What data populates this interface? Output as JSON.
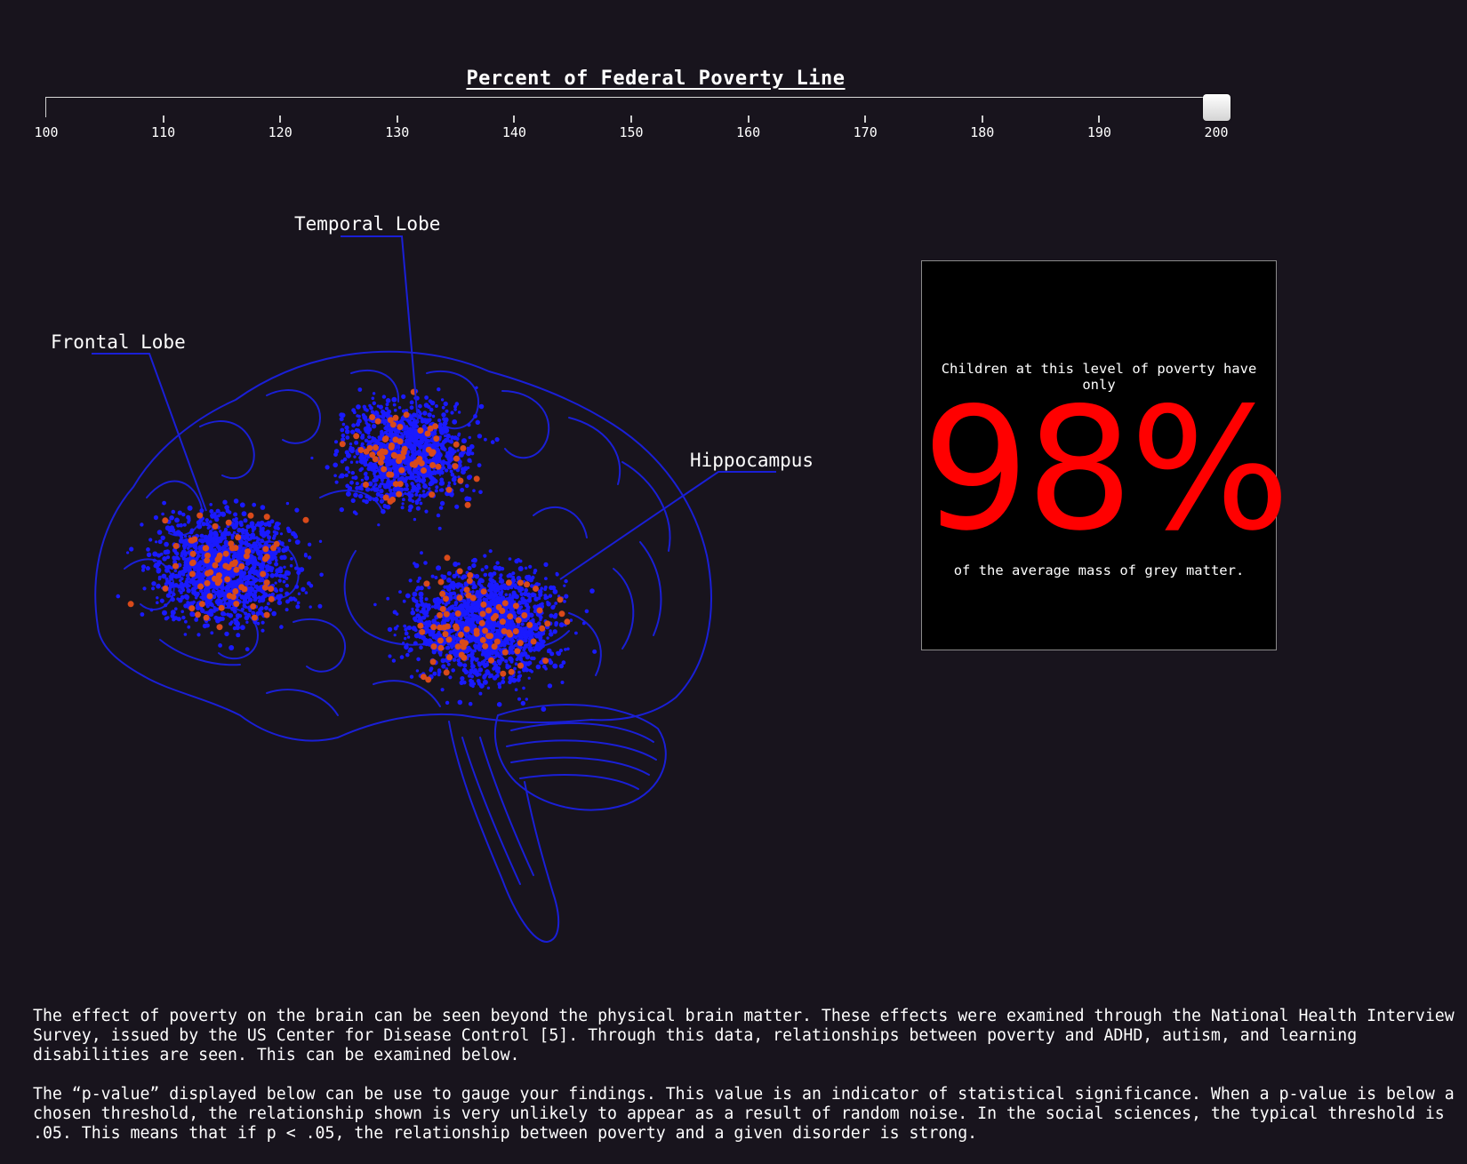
{
  "slider": {
    "title": "Percent of Federal Poverty Line",
    "min": 100,
    "max": 200,
    "value": 200,
    "tick_labels": [
      "100",
      "110",
      "120",
      "130",
      "140",
      "150",
      "160",
      "170",
      "180",
      "190",
      "200"
    ]
  },
  "regions": {
    "temporal": "Temporal Lobe",
    "frontal": "Frontal Lobe",
    "hippocampus": "Hippocampus"
  },
  "stat_box": {
    "pre_text": "Children at this level of poverty have only",
    "value": "98%",
    "post_text": "of the average mass of grey matter."
  },
  "description": {
    "paragraph_1": "The effect of poverty on the brain can be seen beyond the physical brain matter. These effects were examined through the National Health Interview Survey, issued by the US Center for Disease Control [5]. Through this data, relationships between poverty and ADHD, autism, and learning disabilities are seen. This can be examined below.",
    "paragraph_2": "The “p-value” displayed below can be use to gauge your findings. This value is an indicator of statistical significance. When a p-value is below a chosen threshold, the relationship shown is very unlikely to appear as a result of random noise. In the social sciences, the typical threshold is .05. This means that if p < .05, the relationship between poverty and a given disorder is strong."
  },
  "colors": {
    "background": "#18141d",
    "brain_outline": "#1a1fd6",
    "blue_dots": "#1a1aff",
    "red_dots": "#d94a1a",
    "stat_value": "#ff0000"
  }
}
